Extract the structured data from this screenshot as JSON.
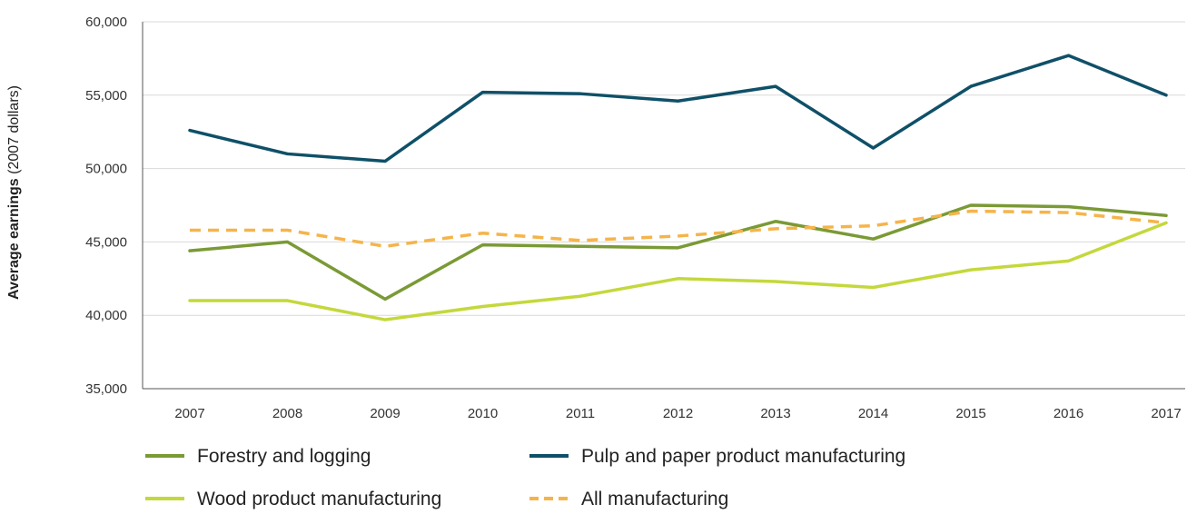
{
  "chart_data": {
    "type": "line",
    "title": "",
    "xlabel": "",
    "ylabel_bold": "Average earnings",
    "ylabel_rest": " (2007 dollars)",
    "categories": [
      "2007",
      "2008",
      "2009",
      "2010",
      "2011",
      "2012",
      "2013",
      "2014",
      "2015",
      "2016",
      "2017"
    ],
    "ylim": [
      35000,
      60000
    ],
    "yticks": [
      35000,
      40000,
      45000,
      50000,
      55000,
      60000
    ],
    "ytick_labels": [
      "35,000",
      "40,000",
      "45,000",
      "50,000",
      "55,000",
      "60,000"
    ],
    "grid": true,
    "legend_position": "bottom",
    "series": [
      {
        "name": "Forestry and logging",
        "color": "#7a9a35",
        "dash": false,
        "values": [
          44400,
          45000,
          41100,
          44800,
          44700,
          44600,
          46400,
          45200,
          47500,
          47400,
          46800
        ]
      },
      {
        "name": "Pulp and paper product manufacturing",
        "color": "#0f5068",
        "dash": false,
        "values": [
          52600,
          51000,
          50500,
          55200,
          55100,
          54600,
          55600,
          51400,
          55600,
          57700,
          55000
        ]
      },
      {
        "name": "Wood product manufacturing",
        "color": "#c4d83c",
        "dash": false,
        "values": [
          41000,
          41000,
          39700,
          40600,
          41300,
          42500,
          42300,
          41900,
          43100,
          43700,
          46300
        ]
      },
      {
        "name": "All manufacturing",
        "color": "#f5b44a",
        "dash": true,
        "values": [
          45800,
          45800,
          44700,
          45600,
          45100,
          45400,
          45900,
          46100,
          47100,
          47000,
          46300
        ]
      }
    ]
  }
}
